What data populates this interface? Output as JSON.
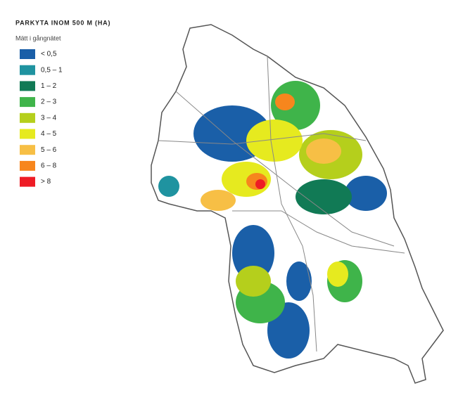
{
  "title": "PARKYTA INOM 500 M (HA)",
  "subtitle": "Mätt i gångnätet",
  "legend": [
    {
      "label": "< 0,5",
      "color": "#1a5fa8"
    },
    {
      "label": "0,5 – 1",
      "color": "#1f93a0"
    },
    {
      "label": "1 – 2",
      "color": "#117a55"
    },
    {
      "label": "2 – 3",
      "color": "#3fb44a"
    },
    {
      "label": "3 – 4",
      "color": "#b5cf1c"
    },
    {
      "label": "4 – 5",
      "color": "#e6ea1f"
    },
    {
      "label": "5 – 6",
      "color": "#f7bf45"
    },
    {
      "label": "6 – 8",
      "color": "#f7861d"
    },
    {
      "label": "> 8",
      "color": "#ee1c25"
    }
  ]
}
